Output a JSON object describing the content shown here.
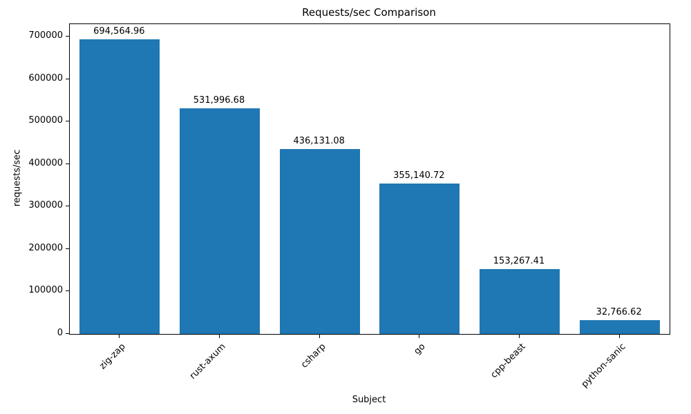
{
  "chart_data": {
    "type": "bar",
    "title": "Requests/sec Comparison",
    "xlabel": "Subject",
    "ylabel": "requests/sec",
    "categories": [
      "zig-zap",
      "rust-axum",
      "csharp",
      "go",
      "cpp-beast",
      "python-sanic"
    ],
    "values": [
      694564.96,
      531996.68,
      436131.08,
      355140.72,
      153267.41,
      32766.62
    ],
    "value_labels": [
      "694,564.96",
      "531,996.68",
      "436,131.08",
      "355,140.72",
      "153,267.41",
      "32,766.62"
    ],
    "ylim": [
      0,
      730000
    ],
    "yticks": [
      0,
      100000,
      200000,
      300000,
      400000,
      500000,
      600000,
      700000
    ],
    "ytick_labels": [
      "0",
      "100000",
      "200000",
      "300000",
      "400000",
      "500000",
      "600000",
      "700000"
    ],
    "bar_color": "#1f77b4",
    "grid": false,
    "legend_position": "none"
  }
}
